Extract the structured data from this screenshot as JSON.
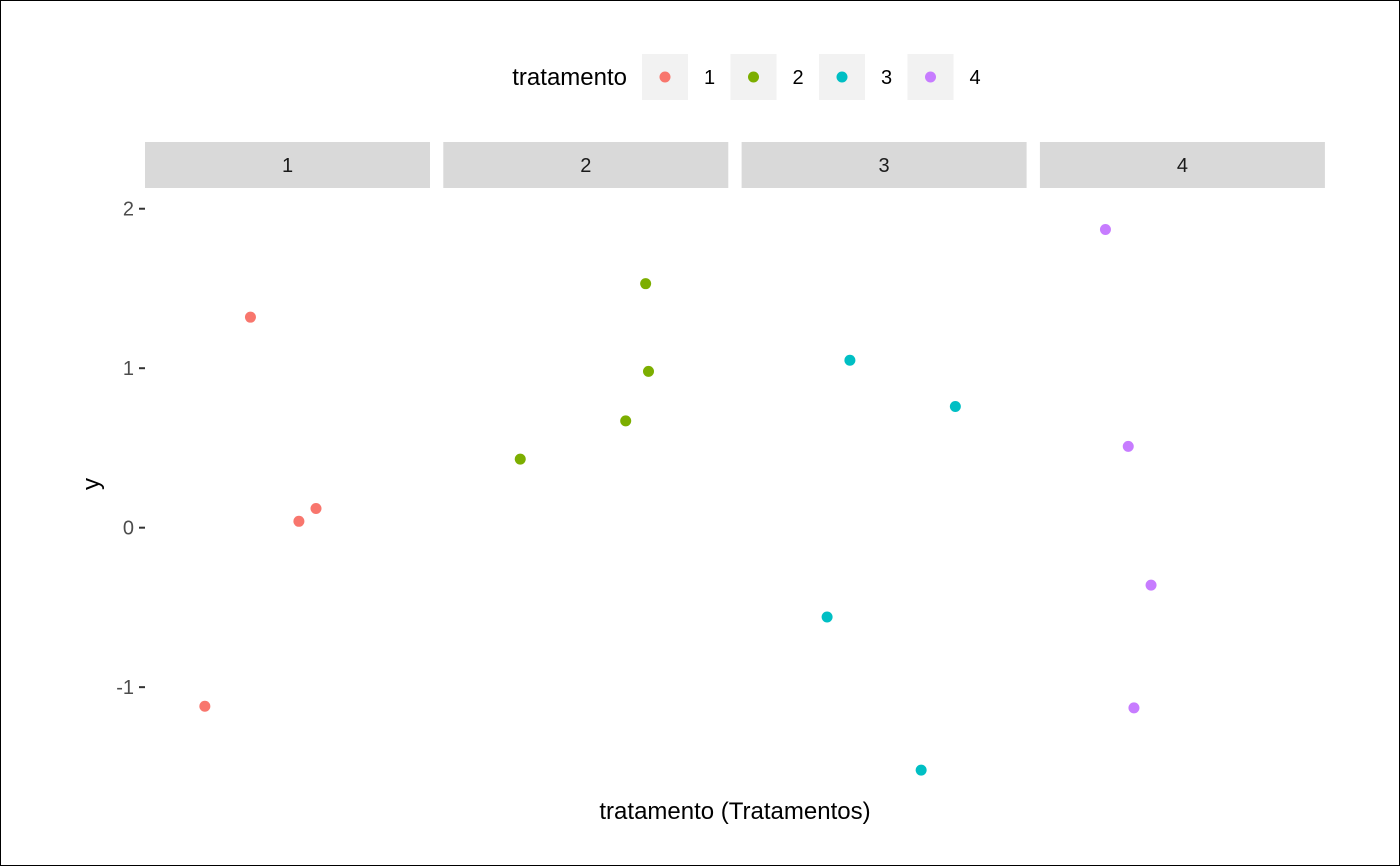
{
  "chart_data": {
    "type": "scatter",
    "facet_by": "tratamento",
    "panels": [
      {
        "label": "1",
        "points": [
          {
            "x": 0.37,
            "y": 1.32
          },
          {
            "x": 0.6,
            "y": 0.12
          },
          {
            "x": 0.54,
            "y": 0.04
          },
          {
            "x": 0.21,
            "y": -1.12
          }
        ]
      },
      {
        "label": "2",
        "points": [
          {
            "x": 0.71,
            "y": 1.53
          },
          {
            "x": 0.72,
            "y": 0.98
          },
          {
            "x": 0.64,
            "y": 0.67
          },
          {
            "x": 0.27,
            "y": 0.43
          }
        ]
      },
      {
        "label": "3",
        "points": [
          {
            "x": 0.38,
            "y": 1.05
          },
          {
            "x": 0.75,
            "y": 0.76
          },
          {
            "x": 0.3,
            "y": -0.56
          },
          {
            "x": 0.63,
            "y": -1.52
          }
        ]
      },
      {
        "label": "4",
        "points": [
          {
            "x": 0.23,
            "y": 1.87
          },
          {
            "x": 0.31,
            "y": 0.51
          },
          {
            "x": 0.39,
            "y": -0.36
          },
          {
            "x": 0.33,
            "y": -1.13
          }
        ]
      }
    ],
    "legend": {
      "title": "tratamento",
      "placement": "top",
      "items": [
        {
          "label": "1",
          "color": "#F8766D"
        },
        {
          "label": "2",
          "color": "#7CAE00"
        },
        {
          "label": "3",
          "color": "#00BFC4"
        },
        {
          "label": "4",
          "color": "#C77CFF"
        }
      ]
    },
    "xlabel": "tratamento (Tratamentos)",
    "ylabel": "y",
    "ylim": [
      -1.67,
      2.13
    ],
    "y_ticks": [
      2,
      1,
      0,
      -1
    ],
    "y_tick_labels": [
      "2",
      "1",
      "0",
      "-1"
    ],
    "x_ticks": [],
    "grid": false
  }
}
